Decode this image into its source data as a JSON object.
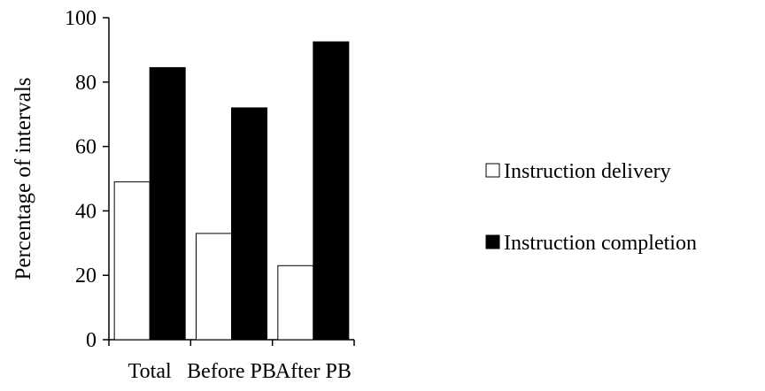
{
  "chart_data": {
    "type": "bar",
    "title": "",
    "xlabel": "",
    "ylabel": "Percentage of intervals",
    "categories": [
      "Total",
      "Before PB",
      "After PB"
    ],
    "ylim": [
      0,
      100
    ],
    "yticks": [
      "0",
      "20",
      "40",
      "60",
      "80",
      "100"
    ],
    "grid": false,
    "legend_position": "right",
    "series": [
      {
        "name": "Instruction delivery",
        "values": [
          49,
          33,
          23
        ],
        "color": "#ffffff"
      },
      {
        "name": "Instruction completion",
        "values": [
          84.5,
          72,
          92.5
        ],
        "color": "#000000"
      }
    ]
  }
}
